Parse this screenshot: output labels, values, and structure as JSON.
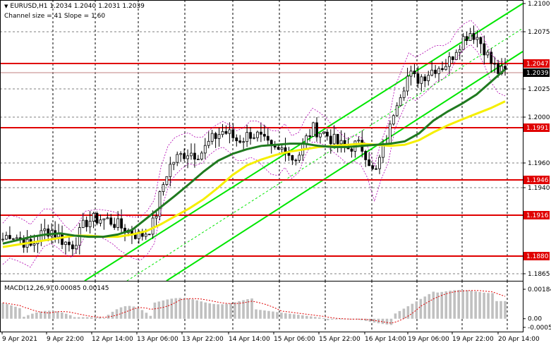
{
  "header": {
    "symbol_line": "EURUSD,H1  1.2034 1.2040 1.2031 1.2039",
    "channel_line": "Channel size = 41 Slope = 1.60"
  },
  "macd": {
    "label": "MACD(12,26,9) 0.00085 0.00145"
  },
  "colors": {
    "background": "#ffffff",
    "candle": "#000000",
    "level_line": "#e00000",
    "level_label_bg": "#e00000",
    "ma_fast": "#1f7a1f",
    "ma_slow": "#f5ef00",
    "channel": "#00e600",
    "envelope": "#b000b0",
    "macd_hist": "#c0c0c0",
    "macd_signal": "#e00000"
  },
  "chart_data": [
    {
      "type": "candlestick",
      "symbol": "EURUSD",
      "timeframe": "H1",
      "ylim": [
        1.1855,
        1.21
      ],
      "y_ticks": [
        "1.2100",
        "1.2075",
        "1.2025",
        "1.2000",
        "1.1960",
        "1.1940",
        "1.1865"
      ],
      "x_ticks": [
        "9 Apr 2021",
        "9 Apr 22:00",
        "12 Apr 14:00",
        "13 Apr 06:00",
        "13 Apr 22:00",
        "14 Apr 14:00",
        "15 Apr 06:00",
        "15 Apr 22:00",
        "16 Apr 14:00",
        "19 Apr 06:00",
        "19 Apr 22:00",
        "20 Apr 14:00"
      ],
      "grid": true,
      "levels": [
        {
          "value": 1.2047,
          "label": "1.2047"
        },
        {
          "value": 1.1991,
          "label": "1.1991"
        },
        {
          "value": 1.1946,
          "label": "1.1946"
        },
        {
          "value": 1.1916,
          "label": "1.1916"
        },
        {
          "value": 1.188,
          "label": "1.1880"
        }
      ],
      "current_price": {
        "value": 1.2039,
        "label": "1.2039"
      },
      "close_path": [
        1.1895,
        1.19,
        1.1897,
        1.1893,
        1.1888,
        1.1895,
        1.1902,
        1.1903,
        1.1898,
        1.1892,
        1.1889,
        1.1898,
        1.191,
        1.1912,
        1.1913,
        1.1912,
        1.191,
        1.1906,
        1.1903,
        1.19,
        1.1898,
        1.1902,
        1.191,
        1.1937,
        1.1955,
        1.1963,
        1.1967,
        1.197,
        1.1968,
        1.197,
        1.1978,
        1.1984,
        1.1988,
        1.1985,
        1.198,
        1.1982,
        1.1986,
        1.1984,
        1.1978,
        1.1972,
        1.197,
        1.1975,
        1.1964,
        1.1967,
        1.198,
        1.199,
        1.1988,
        1.1985,
        1.198,
        1.1976,
        1.1972,
        1.1976,
        1.1975,
        1.1966,
        1.1948,
        1.1968,
        1.1982,
        1.2012,
        1.2025,
        1.2038,
        1.2033,
        1.2036,
        1.204,
        1.2044,
        1.2045,
        1.205,
        1.2062,
        1.207,
        1.2075,
        1.207,
        1.206,
        1.2047,
        1.204,
        1.2039
      ],
      "ma_fast_path": [
        1.1891,
        1.1894,
        1.1897,
        1.1899,
        1.19,
        1.1898,
        1.1897,
        1.1897,
        1.1899,
        1.1903,
        1.1913,
        1.1923,
        1.1933,
        1.1943,
        1.1953,
        1.1962,
        1.1968,
        1.1972,
        1.1975,
        1.1976,
        1.1977,
        1.1977,
        1.1975,
        1.1974,
        1.1974,
        1.1975,
        1.1976,
        1.1977,
        1.1979,
        1.1986,
        1.1997,
        1.2005,
        1.2012,
        1.202,
        1.2031,
        1.2042
      ],
      "ma_slow_path": [
        1.1888,
        1.189,
        1.1892,
        1.1894,
        1.1896,
        1.1898,
        1.1898,
        1.1897,
        1.1897,
        1.1899,
        1.1902,
        1.1908,
        1.1915,
        1.1922,
        1.193,
        1.194,
        1.195,
        1.1958,
        1.1963,
        1.1967,
        1.197,
        1.1972,
        1.1974,
        1.1975,
        1.1976,
        1.1977,
        1.1976,
        1.1975,
        1.1976,
        1.198,
        1.1987,
        1.1993,
        1.1998,
        1.2003,
        1.2008,
        1.2014
      ]
    },
    {
      "type": "bar",
      "name": "MACD(12,26,9)",
      "ylim": [
        -0.00054,
        0.00184
      ],
      "y_ticks": [
        "0.00184",
        "0.00",
        "-0.00054"
      ],
      "grid": true
    }
  ]
}
